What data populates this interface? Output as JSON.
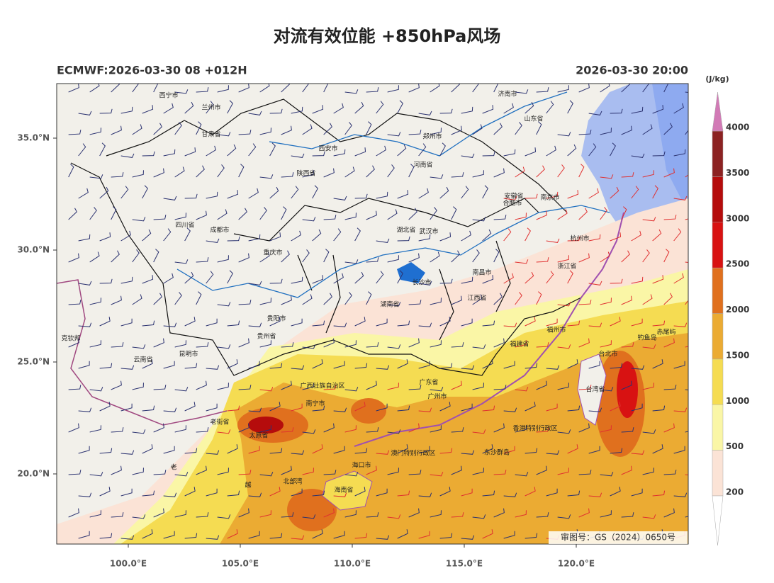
{
  "header": {
    "title": "对流有效位能 +850hPa风场",
    "model_run": "ECMWF:2026-03-30 08 +012H",
    "valid_time": "2026-03-30 20:00"
  },
  "axes": {
    "lat_ticks": [
      {
        "value": 35,
        "label": "35.0°N"
      },
      {
        "value": 30,
        "label": "30.0°N"
      },
      {
        "value": 25,
        "label": "25.0°N"
      },
      {
        "value": 20,
        "label": "20.0°N"
      }
    ],
    "lon_ticks": [
      {
        "value": 100,
        "label": "100.0°E"
      },
      {
        "value": 105,
        "label": "105.0°E"
      },
      {
        "value": 110,
        "label": "110.0°E"
      },
      {
        "value": 115,
        "label": "115.0°E"
      },
      {
        "value": 120,
        "label": "120.0°E"
      }
    ]
  },
  "colorbar": {
    "unit": "(J/kg)",
    "levels": [
      200,
      500,
      1000,
      1500,
      2000,
      2500,
      3000,
      3500,
      4000
    ],
    "colors": [
      "#fbe3d6",
      "#faf6a6",
      "#f5dc52",
      "#ebab33",
      "#e0701e",
      "#d81212",
      "#b50c0c",
      "#8c2222"
    ],
    "over_color": "#d27ab6",
    "under_color": "#ffffff"
  },
  "map_labels": [
    "西宁市",
    "兰州市",
    "甘肃省",
    "西安市",
    "陕西省",
    "郑州市",
    "河南省",
    "济南市",
    "山东省",
    "安徽省",
    "合肥市",
    "南京市",
    "四川省",
    "成都市",
    "重庆市",
    "湖北省",
    "武汉市",
    "杭州市",
    "浙江省",
    "长沙市",
    "湖南省",
    "南昌市",
    "江西省",
    "贵阳市",
    "贵州省",
    "昆明市",
    "云南省",
    "福州市",
    "福建省",
    "台北市",
    "台湾省",
    "广东省",
    "广州市",
    "南宁市",
    "广西壮族自治区",
    "香港特别行政区",
    "澳门特别行政区",
    "海口市",
    "海南省",
    "东沙群岛",
    "钓鱼岛",
    "赤尾屿",
    "克钦邦",
    "老街省",
    "太原省",
    "越",
    "老",
    "北部湾"
  ],
  "approval": "审图号：GS（2024）0650号"
}
